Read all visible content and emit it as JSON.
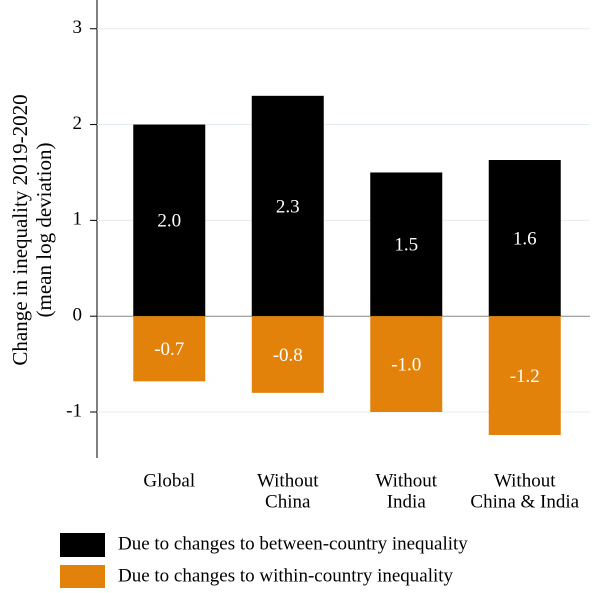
{
  "chart_data": {
    "type": "bar",
    "ylabel": [
      "Change in inequality 2019-2020",
      "(mean log deviation)"
    ],
    "categories": [
      [
        "Global"
      ],
      [
        "Without",
        "China"
      ],
      [
        "Without",
        "India"
      ],
      [
        "Without",
        "China & India"
      ]
    ],
    "series": [
      {
        "name": "Due to changes to between-country inequality",
        "color": "#000000",
        "values": [
          2.0,
          2.3,
          1.5,
          1.63
        ],
        "value_labels": [
          "2.0",
          "2.3",
          "1.5",
          "1.6"
        ]
      },
      {
        "name": "Due to changes to within-country inequality",
        "color": "#e3820a",
        "values": [
          -0.68,
          -0.8,
          -1.0,
          -1.24
        ],
        "value_labels": [
          "-0.7",
          "-0.8",
          "-1.0",
          "-1.2"
        ]
      }
    ],
    "ylim": [
      -1.48,
      3.3
    ],
    "yticks": [
      -1,
      0,
      1,
      2,
      3
    ],
    "grid": true
  }
}
